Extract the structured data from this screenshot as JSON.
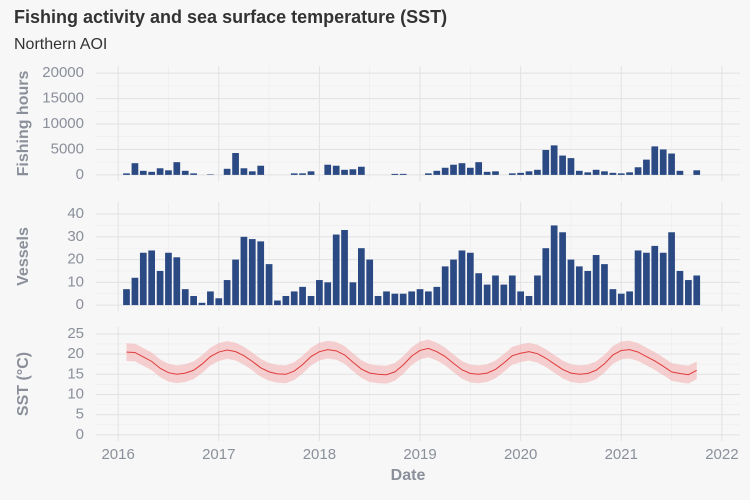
{
  "title": "Fishing activity and sea surface temperature (SST)",
  "subtitle": "Northern AOI",
  "chart_data": [
    {
      "type": "bar",
      "ylabel": "Fishing hours",
      "color": "#2b4a83",
      "grid": true,
      "xtick_labels": false,
      "xlim": [
        2015.78,
        2022.18
      ],
      "xticks": [
        2016,
        2017,
        2018,
        2019,
        2020,
        2021,
        2022
      ],
      "ylim": [
        -1200,
        21400
      ],
      "yticks": [
        0,
        5000,
        10000,
        15000,
        20000
      ],
      "x": [
        2016.083,
        2016.167,
        2016.25,
        2016.333,
        2016.417,
        2016.5,
        2016.583,
        2016.667,
        2016.75,
        2016.833,
        2016.917,
        2017,
        2017.083,
        2017.167,
        2017.25,
        2017.333,
        2017.417,
        2017.5,
        2017.583,
        2017.667,
        2017.75,
        2017.833,
        2017.917,
        2018,
        2018.083,
        2018.167,
        2018.25,
        2018.333,
        2018.417,
        2018.5,
        2018.583,
        2018.667,
        2018.75,
        2018.833,
        2018.917,
        2019,
        2019.083,
        2019.167,
        2019.25,
        2019.333,
        2019.417,
        2019.5,
        2019.583,
        2019.667,
        2019.75,
        2019.833,
        2019.917,
        2020,
        2020.083,
        2020.167,
        2020.25,
        2020.333,
        2020.417,
        2020.5,
        2020.583,
        2020.667,
        2020.75,
        2020.833,
        2020.917,
        2021,
        2021.083,
        2021.167,
        2021.25,
        2021.333,
        2021.417,
        2021.5,
        2021.583,
        2021.667,
        2021.75
      ],
      "values": [
        300,
        2300,
        800,
        600,
        1300,
        900,
        2500,
        800,
        300,
        0,
        100,
        0,
        1200,
        4300,
        1300,
        700,
        1800,
        0,
        0,
        0,
        300,
        300,
        700,
        0,
        2000,
        1800,
        1000,
        1100,
        1600,
        0,
        0,
        0,
        200,
        200,
        0,
        0,
        300,
        800,
        1400,
        2000,
        2300,
        1400,
        2500,
        600,
        700,
        0,
        300,
        400,
        700,
        1000,
        4900,
        5800,
        3800,
        3300,
        800,
        500,
        1000,
        700,
        400,
        300,
        500,
        1500,
        3000,
        5600,
        5000,
        4200,
        800,
        0,
        900
      ]
    },
    {
      "type": "bar",
      "ylabel": "Vessels",
      "color": "#2b4a83",
      "grid": true,
      "xtick_labels": false,
      "xlim": [
        2015.78,
        2022.18
      ],
      "xticks": [
        2016,
        2017,
        2018,
        2019,
        2020,
        2021,
        2022
      ],
      "ylim": [
        -2.6,
        45.3
      ],
      "yticks": [
        0,
        10,
        20,
        30,
        40
      ],
      "x": [
        2016.083,
        2016.167,
        2016.25,
        2016.333,
        2016.417,
        2016.5,
        2016.583,
        2016.667,
        2016.75,
        2016.833,
        2016.917,
        2017,
        2017.083,
        2017.167,
        2017.25,
        2017.333,
        2017.417,
        2017.5,
        2017.583,
        2017.667,
        2017.75,
        2017.833,
        2017.917,
        2018,
        2018.083,
        2018.167,
        2018.25,
        2018.333,
        2018.417,
        2018.5,
        2018.583,
        2018.667,
        2018.75,
        2018.833,
        2018.917,
        2019,
        2019.083,
        2019.167,
        2019.25,
        2019.333,
        2019.417,
        2019.5,
        2019.583,
        2019.667,
        2019.75,
        2019.833,
        2019.917,
        2020,
        2020.083,
        2020.167,
        2020.25,
        2020.333,
        2020.417,
        2020.5,
        2020.583,
        2020.667,
        2020.75,
        2020.833,
        2020.917,
        2021,
        2021.083,
        2021.167,
        2021.25,
        2021.333,
        2021.417,
        2021.5,
        2021.583,
        2021.667,
        2021.75
      ],
      "values": [
        7,
        12,
        23,
        24,
        15,
        23,
        21,
        7,
        4,
        1,
        6,
        3,
        11,
        20,
        30,
        29,
        28,
        18,
        2,
        4,
        6,
        8,
        4,
        11,
        10,
        31,
        33,
        10,
        25,
        20,
        4,
        6,
        5,
        5,
        6,
        7,
        6,
        8,
        17,
        20,
        24,
        23,
        14,
        9,
        13,
        9,
        13,
        6,
        4,
        13,
        25,
        35,
        32,
        20,
        17,
        15,
        22,
        18,
        7,
        5,
        6,
        24,
        23,
        26,
        23,
        32,
        15,
        11,
        13
      ]
    },
    {
      "type": "line",
      "ylabel": "SST (°C)",
      "xlabel": "Date",
      "color": "#e03a3a",
      "band_color": "#f4b4b4",
      "grid": true,
      "xtick_labels": true,
      "xlim": [
        2015.78,
        2022.18
      ],
      "xticks": [
        2016,
        2017,
        2018,
        2019,
        2020,
        2021,
        2022
      ],
      "ylim": [
        -1.5,
        26.7
      ],
      "yticks": [
        0,
        5,
        10,
        15,
        20,
        25
      ],
      "x": [
        2016.083,
        2016.167,
        2016.25,
        2016.333,
        2016.417,
        2016.5,
        2016.583,
        2016.667,
        2016.75,
        2016.833,
        2016.917,
        2017,
        2017.083,
        2017.167,
        2017.25,
        2017.333,
        2017.417,
        2017.5,
        2017.583,
        2017.667,
        2017.75,
        2017.833,
        2017.917,
        2018,
        2018.083,
        2018.167,
        2018.25,
        2018.333,
        2018.417,
        2018.5,
        2018.583,
        2018.667,
        2018.75,
        2018.833,
        2018.917,
        2019,
        2019.083,
        2019.167,
        2019.25,
        2019.333,
        2019.417,
        2019.5,
        2019.583,
        2019.667,
        2019.75,
        2019.833,
        2019.917,
        2020,
        2020.083,
        2020.167,
        2020.25,
        2020.333,
        2020.417,
        2020.5,
        2020.583,
        2020.667,
        2020.75,
        2020.833,
        2020.917,
        2021,
        2021.083,
        2021.167,
        2021.25,
        2021.333,
        2021.417,
        2021.5,
        2021.583,
        2021.667,
        2021.75
      ],
      "values": [
        20.5,
        20.4,
        19.3,
        18.2,
        16.5,
        15.4,
        15.0,
        15.3,
        16.0,
        17.5,
        19.4,
        20.5,
        21.0,
        20.6,
        19.6,
        18.2,
        16.6,
        15.6,
        15.1,
        15.0,
        15.8,
        17.4,
        19.4,
        20.6,
        21.1,
        20.8,
        19.8,
        18.0,
        16.3,
        15.3,
        15.0,
        14.9,
        15.6,
        17.3,
        19.5,
        20.9,
        21.4,
        20.6,
        19.4,
        17.7,
        16.1,
        15.2,
        15.0,
        15.3,
        16.2,
        17.8,
        19.6,
        20.2,
        20.6,
        20.1,
        19.0,
        17.6,
        16.2,
        15.3,
        15.0,
        15.2,
        16.0,
        17.6,
        19.8,
        20.9,
        21.1,
        20.5,
        19.4,
        18.3,
        17.0,
        15.6,
        15.2,
        14.9,
        16.0
      ],
      "low": [
        18.3,
        18.2,
        17.1,
        16.0,
        14.3,
        13.2,
        12.8,
        13.1,
        13.8,
        15.3,
        17.2,
        18.3,
        18.8,
        18.4,
        17.4,
        16.0,
        14.4,
        13.4,
        12.9,
        12.8,
        13.6,
        15.2,
        17.2,
        18.4,
        18.9,
        18.6,
        17.6,
        15.8,
        14.1,
        13.1,
        12.8,
        12.7,
        13.4,
        15.1,
        17.3,
        18.7,
        19.2,
        18.4,
        17.2,
        15.5,
        13.9,
        13.0,
        12.8,
        13.1,
        14.0,
        15.6,
        17.4,
        18.0,
        18.4,
        17.9,
        16.8,
        15.4,
        14.0,
        13.1,
        12.8,
        13.0,
        13.8,
        15.4,
        17.6,
        18.7,
        18.9,
        18.3,
        17.2,
        16.1,
        14.8,
        13.4,
        13.0,
        12.7,
        13.8
      ],
      "high": [
        22.7,
        22.6,
        21.5,
        20.4,
        18.7,
        17.6,
        17.2,
        17.5,
        18.2,
        19.7,
        21.6,
        22.7,
        23.2,
        22.8,
        21.8,
        20.4,
        18.8,
        17.8,
        17.3,
        17.2,
        18.0,
        19.6,
        21.6,
        22.8,
        23.3,
        23.0,
        22.0,
        20.2,
        18.5,
        17.5,
        17.2,
        17.1,
        17.8,
        19.5,
        21.7,
        23.1,
        23.6,
        22.8,
        21.6,
        19.9,
        18.3,
        17.4,
        17.2,
        17.5,
        18.4,
        20.0,
        21.8,
        22.4,
        22.8,
        22.3,
        21.2,
        19.8,
        18.4,
        17.5,
        17.2,
        17.4,
        18.2,
        19.8,
        22.0,
        23.1,
        23.3,
        22.7,
        21.6,
        20.5,
        19.2,
        17.8,
        17.4,
        17.1,
        18.2
      ]
    }
  ]
}
